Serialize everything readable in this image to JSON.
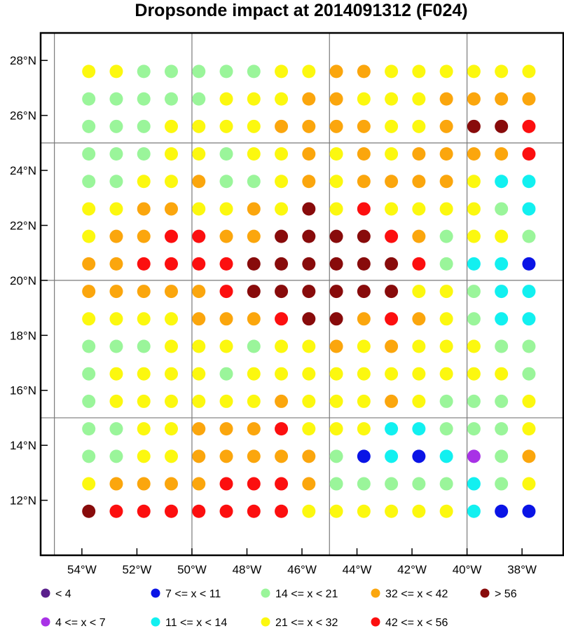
{
  "title": "Dropsonde impact at 2014091312 (F024)",
  "map": {
    "lon_range": [
      -55.5,
      -36.5
    ],
    "lat_range": [
      10,
      29
    ],
    "lon_ticks": [
      {
        "value": -54,
        "label": "54°W"
      },
      {
        "value": -52,
        "label": "52°W"
      },
      {
        "value": -50,
        "label": "50°W"
      },
      {
        "value": -48,
        "label": "48°W"
      },
      {
        "value": -46,
        "label": "46°W"
      },
      {
        "value": -44,
        "label": "44°W"
      },
      {
        "value": -42,
        "label": "42°W"
      },
      {
        "value": -40,
        "label": "40°W"
      },
      {
        "value": -38,
        "label": "38°W"
      }
    ],
    "lat_ticks": [
      {
        "value": 12,
        "label": "12°N"
      },
      {
        "value": 14,
        "label": "14°N"
      },
      {
        "value": 16,
        "label": "16°N"
      },
      {
        "value": 18,
        "label": "18°N"
      },
      {
        "value": 20,
        "label": "20°N"
      },
      {
        "value": 22,
        "label": "22°N"
      },
      {
        "value": 24,
        "label": "24°N"
      },
      {
        "value": 26,
        "label": "26°N"
      },
      {
        "value": 28,
        "label": "28°N"
      }
    ],
    "grid_lines": {
      "lon": [
        -55,
        -50,
        -45,
        -40
      ],
      "lat": [
        15,
        20,
        25
      ]
    }
  },
  "legend": [
    {
      "code": 0,
      "label": "<  4",
      "color": "#5a1f8c"
    },
    {
      "code": 1,
      "label": "4 <= x <  7",
      "color": "#a832e6"
    },
    {
      "code": 2,
      "label": "7 <= x < 11",
      "color": "#0a14e6"
    },
    {
      "code": 3,
      "label": "11 <= x < 14",
      "color": "#12f0f0"
    },
    {
      "code": 4,
      "label": "14 <= x < 21",
      "color": "#9af59a"
    },
    {
      "code": 5,
      "label": "21 <= x < 32",
      "color": "#fcf80f"
    },
    {
      "code": 6,
      "label": "32 <= x < 42",
      "color": "#fba60d"
    },
    {
      "code": 7,
      "label": "42 <= x < 56",
      "color": "#fc0f0f"
    },
    {
      "code": 8,
      "label": "> 56",
      "color": "#880b0b"
    }
  ],
  "chart_data": {
    "type": "scatter",
    "title": "Dropsonde impact at 2014091312 (F024)",
    "value_encoding": "category code per point (index into legend)",
    "lons": [
      -53.75,
      -52.75,
      -51.75,
      -50.75,
      -49.75,
      -48.75,
      -47.75,
      -46.75,
      -45.75,
      -44.75,
      -43.75,
      -42.75,
      -41.75,
      -40.75,
      -39.75,
      -38.75,
      -37.75
    ],
    "lats": [
      27.6,
      26.6,
      25.6,
      24.6,
      23.6,
      22.6,
      21.6,
      20.6,
      19.6,
      18.6,
      17.6,
      16.6,
      15.6,
      14.6,
      13.6,
      12.6,
      11.6
    ],
    "rows": [
      "55444445566555555",
      "44444555665556666",
      "44455556666556887",
      "44455455656566667",
      "44556445656666533",
      "55665565857555543",
      "56677668888764554",
      "66777788888874332",
      "66666788888855433",
      "55556667886765433",
      "44455545565655544",
      "45555455555555554",
      "45555556555654445",
      "44556667555334445",
      "44556666642323146",
      "56666777644444345",
      "87777777555555322"
    ]
  }
}
